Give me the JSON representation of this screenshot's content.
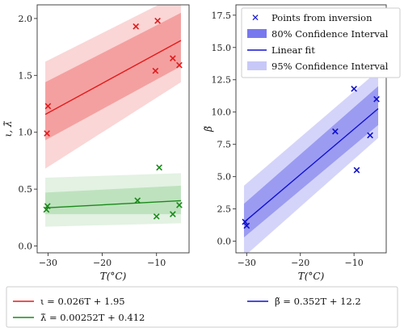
{
  "chart_data": [
    {
      "type": "scatter",
      "xlabel": "T(°C)",
      "ylabel": "ι, λ̃",
      "xlim": [
        -32,
        -4
      ],
      "ylim": [
        -0.06,
        2.12
      ],
      "xticks": [
        -30,
        -20,
        -10
      ],
      "xtick_labels": [
        "−30",
        "−20",
        "−10"
      ],
      "yticks": [
        0.0,
        0.5,
        1.0,
        1.5,
        2.0
      ],
      "ytick_labels": [
        "0.0",
        "0.5",
        "1.0",
        "1.5",
        "2.0"
      ],
      "grid": false,
      "series": [
        {
          "name": "ι = 0.026T + 1.95",
          "color": "#e31a1c",
          "band_color": "#f08080",
          "fit": {
            "slope": 0.026,
            "intercept": 1.95
          },
          "x": [
            -30.2,
            -30.0,
            -13.8,
            -9.8,
            -10.2,
            -7.0,
            -5.8
          ],
          "y": [
            0.99,
            1.23,
            1.93,
            1.98,
            1.54,
            1.65,
            1.59
          ],
          "band80": {
            "x": [
              -30.5,
              -5.5
            ],
            "lower": [
              0.93,
              1.58
            ],
            "upper": [
              1.44,
              2.05
            ]
          },
          "band95": {
            "x": [
              -30.5,
              -5.5
            ],
            "lower": [
              0.68,
              1.44
            ],
            "upper": [
              1.62,
              2.22
            ]
          }
        },
        {
          "name": "λ̃ = 0.00252T + 0.412",
          "color": "#1a8a1a",
          "band_color": "#a8d8a8",
          "fit": {
            "slope": 0.00252,
            "intercept": 0.412
          },
          "x": [
            -30.3,
            -30.1,
            -13.5,
            -9.5,
            -10.0,
            -7.0,
            -5.8
          ],
          "y": [
            0.32,
            0.35,
            0.4,
            0.69,
            0.26,
            0.28,
            0.36
          ],
          "band80": {
            "x": [
              -30.5,
              -5.5
            ],
            "lower": [
              0.28,
              0.28
            ],
            "upper": [
              0.47,
              0.53
            ]
          },
          "band95": {
            "x": [
              -30.5,
              -5.5
            ],
            "lower": [
              0.17,
              0.2
            ],
            "upper": [
              0.6,
              0.64
            ]
          }
        }
      ]
    },
    {
      "type": "scatter",
      "xlabel": "T(°C)",
      "ylabel": "β̃",
      "xlim": [
        -32,
        -4
      ],
      "ylim": [
        -0.9,
        18.3
      ],
      "xticks": [
        -30,
        -20,
        -10
      ],
      "xtick_labels": [
        "−30",
        "−20",
        "−10"
      ],
      "yticks": [
        0.0,
        2.5,
        5.0,
        7.5,
        10.0,
        12.5,
        15.0,
        17.5
      ],
      "ytick_labels": [
        "0.0",
        "2.5",
        "5.0",
        "7.5",
        "10.0",
        "12.5",
        "15.0",
        "17.5"
      ],
      "grid": false,
      "legend_position": "top-right",
      "legend": [
        {
          "label": "Points from inversion",
          "kind": "marker"
        },
        {
          "label": "80% Confidence Interval",
          "kind": "patch80"
        },
        {
          "label": "Linear fit",
          "kind": "line"
        },
        {
          "label": "95% Confidence Interval",
          "kind": "patch95"
        }
      ],
      "series": [
        {
          "name": "β̃ = 0.352T + 12.2",
          "color": "#1010d0",
          "band_color": "#7878ee",
          "fit": {
            "slope": 0.352,
            "intercept": 12.2
          },
          "x": [
            -30.3,
            -30.0,
            -13.5,
            -10.0,
            -9.5,
            -7.0,
            -5.8
          ],
          "y": [
            1.5,
            1.2,
            8.5,
            11.8,
            5.5,
            8.2,
            11.0
          ],
          "band80": {
            "x": [
              -30.5,
              -5.5
            ],
            "lower": [
              0.3,
              9.0
            ],
            "upper": [
              2.9,
              12.0
            ]
          },
          "band95": {
            "x": [
              -30.5,
              -5.5
            ],
            "lower": [
              -1.2,
              8.0
            ],
            "upper": [
              4.3,
              13.2
            ]
          }
        }
      ]
    }
  ],
  "bottom_legend": [
    {
      "label": "ι = 0.026T + 1.95",
      "color": "#e31a1c"
    },
    {
      "label": "λ̃ = 0.00252T + 0.412",
      "color": "#1a8a1a"
    },
    {
      "label": "β̃ = 0.352T + 12.2",
      "color": "#1010d0"
    }
  ]
}
